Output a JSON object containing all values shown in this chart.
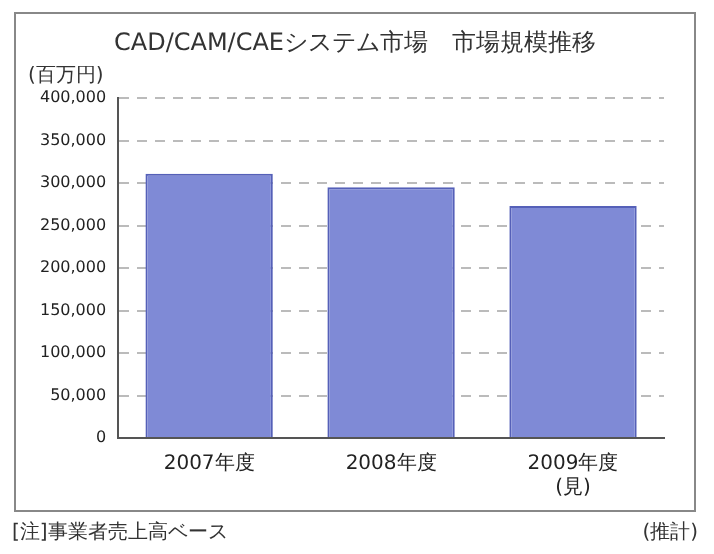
{
  "chart_data": {
    "type": "bar",
    "title": "CAD/CAM/CAEシステム市場　市場規模推移",
    "ylabel": "(百万円)",
    "categories": [
      "2007年度",
      "2008年度",
      "2009年度\n(見)"
    ],
    "values": [
      311000,
      295000,
      273000
    ],
    "color": "#7f8ad6",
    "ylim": [
      0,
      400000
    ],
    "yticks": [
      0,
      {
        "value": 50000,
        "label": "50,000"
      },
      {
        "value": 100000,
        "label": "100,000"
      },
      {
        "value": 150000,
        "label": "150,000"
      },
      {
        "value": 200000,
        "label": "200,000"
      },
      {
        "value": 250000,
        "label": "250,000"
      },
      {
        "value": 300000,
        "label": "300,000"
      },
      {
        "value": 350000,
        "label": "350,000"
      },
      {
        "value": 400000,
        "label": "400,000"
      }
    ],
    "grid": "y",
    "legend": false,
    "annotations": [
      "[注]事業者売上高ベース",
      "(推計)"
    ]
  }
}
